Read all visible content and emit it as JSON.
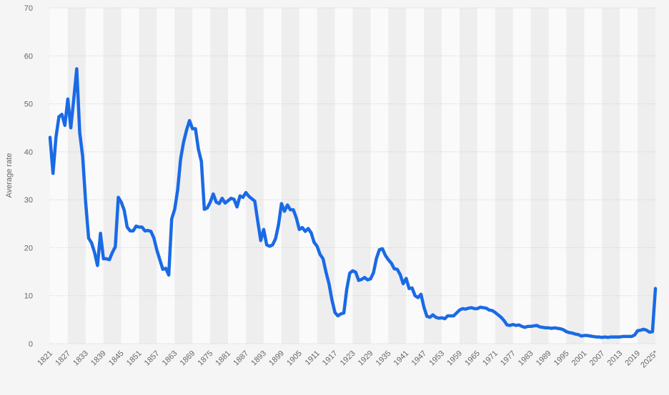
{
  "chart_data": {
    "type": "line",
    "y_label": "Average rate",
    "color": "#1a6ae6",
    "grid": true,
    "x": [
      1821,
      1822,
      1823,
      1824,
      1825,
      1826,
      1827,
      1828,
      1829,
      1830,
      1831,
      1832,
      1833,
      1834,
      1835,
      1836,
      1837,
      1838,
      1839,
      1840,
      1841,
      1842,
      1843,
      1844,
      1845,
      1846,
      1847,
      1848,
      1849,
      1850,
      1851,
      1852,
      1853,
      1854,
      1855,
      1856,
      1857,
      1858,
      1859,
      1860,
      1861,
      1862,
      1863,
      1864,
      1865,
      1866,
      1867,
      1868,
      1869,
      1870,
      1871,
      1872,
      1873,
      1874,
      1875,
      1876,
      1877,
      1878,
      1879,
      1880,
      1881,
      1882,
      1883,
      1884,
      1885,
      1886,
      1887,
      1888,
      1889,
      1890,
      1891,
      1892,
      1893,
      1894,
      1895,
      1896,
      1897,
      1898,
      1899,
      1900,
      1901,
      1902,
      1903,
      1904,
      1905,
      1906,
      1907,
      1908,
      1909,
      1910,
      1911,
      1912,
      1913,
      1914,
      1915,
      1916,
      1917,
      1918,
      1919,
      1920,
      1921,
      1922,
      1923,
      1924,
      1925,
      1926,
      1927,
      1928,
      1929,
      1930,
      1931,
      1932,
      1933,
      1934,
      1935,
      1936,
      1937,
      1938,
      1939,
      1940,
      1941,
      1942,
      1943,
      1944,
      1945,
      1946,
      1947,
      1948,
      1949,
      1950,
      1951,
      1952,
      1953,
      1954,
      1955,
      1956,
      1957,
      1958,
      1959,
      1960,
      1961,
      1962,
      1963,
      1964,
      1965,
      1966,
      1967,
      1968,
      1969,
      1970,
      1971,
      1972,
      1973,
      1974,
      1975,
      1976,
      1977,
      1978,
      1979,
      1980,
      1981,
      1982,
      1983,
      1984,
      1985,
      1986,
      1987,
      1988,
      1989,
      1990,
      1991,
      1992,
      1993,
      1994,
      1995,
      1996,
      1997,
      1998,
      1999,
      2000,
      2001,
      2002,
      2003,
      2004,
      2005,
      2006,
      2007,
      2008,
      2009,
      2010,
      2011,
      2012,
      2013,
      2014,
      2015,
      2016,
      2017,
      2018,
      2019,
      2020,
      2021,
      2022,
      2023,
      2024,
      2025
    ],
    "values": [
      43,
      35.5,
      43,
      47.3,
      47.8,
      45.5,
      51,
      45,
      51,
      57.3,
      44,
      39,
      29.5,
      22,
      21,
      19,
      16.3,
      23,
      17.7,
      17.7,
      17.5,
      19,
      20.2,
      30.5,
      29.5,
      27.8,
      24.3,
      23.5,
      23.5,
      24.5,
      24.3,
      24.3,
      23.5,
      23.6,
      23.4,
      22,
      19.5,
      17.5,
      15.5,
      15.7,
      14.3,
      26,
      28,
      32,
      38.5,
      42,
      44.5,
      46.5,
      44.8,
      44.8,
      40.5,
      38,
      28,
      28.3,
      29.5,
      31.2,
      29.5,
      29.2,
      30.3,
      29.3,
      29.8,
      30.3,
      30.1,
      28.5,
      30.8,
      30.5,
      31.5,
      30.7,
      30.2,
      29.7,
      25.5,
      21.5,
      23.8,
      20.6,
      20.3,
      20.6,
      21.9,
      24.8,
      29.2,
      27.6,
      28.9,
      27.9,
      27.9,
      26.2,
      23.8,
      24.2,
      23.4,
      24,
      23.1,
      21.1,
      20.3,
      18.6,
      17.7,
      14.9,
      12.5,
      9.1,
      6.5,
      5.8,
      6.2,
      6.4,
      11.4,
      14.7,
      15.2,
      14.9,
      13.2,
      13.4,
      13.8,
      13.3,
      13.5,
      14.8,
      17.8,
      19.6,
      19.8,
      18.4,
      17.5,
      16.8,
      15.6,
      15.5,
      14.4,
      12.5,
      13.6,
      11.5,
      11.6,
      10,
      9.6,
      10.3,
      7.6,
      5.7,
      5.5,
      6,
      5.5,
      5.3,
      5.4,
      5.2,
      5.8,
      5.8,
      5.8,
      6.4,
      7,
      7.3,
      7.2,
      7.4,
      7.5,
      7.3,
      7.3,
      7.6,
      7.5,
      7.4,
      7,
      6.9,
      6.5,
      6,
      5.5,
      4.8,
      3.9,
      3.8,
      4,
      3.8,
      3.9,
      3.6,
      3.4,
      3.6,
      3.6,
      3.7,
      3.8,
      3.5,
      3.4,
      3.3,
      3.3,
      3.2,
      3.3,
      3.2,
      3.1,
      2.9,
      2.5,
      2.3,
      2.2,
      2,
      1.9,
      1.6,
      1.7,
      1.7,
      1.6,
      1.5,
      1.4,
      1.4,
      1.3,
      1.4,
      1.3,
      1.4,
      1.4,
      1.4,
      1.4,
      1.5,
      1.5,
      1.5,
      1.5,
      1.8,
      2.7,
      2.8,
      3,
      2.8,
      2.4,
      2.5,
      11.5
    ],
    "xlim": [
      1821,
      2025
    ],
    "xticks": [
      1821,
      1827,
      1833,
      1839,
      1845,
      1851,
      1857,
      1863,
      1869,
      1875,
      1881,
      1887,
      1893,
      1899,
      1905,
      1911,
      1917,
      1923,
      1929,
      1935,
      1941,
      1947,
      1953,
      1959,
      1965,
      1971,
      1977,
      1983,
      1989,
      1995,
      2001,
      2007,
      2013,
      2019,
      {
        "value": 2025,
        "label": "2025*"
      }
    ],
    "ylim": [
      0,
      70
    ],
    "yticks": [
      0,
      10,
      20,
      30,
      40,
      50,
      60,
      70
    ]
  }
}
